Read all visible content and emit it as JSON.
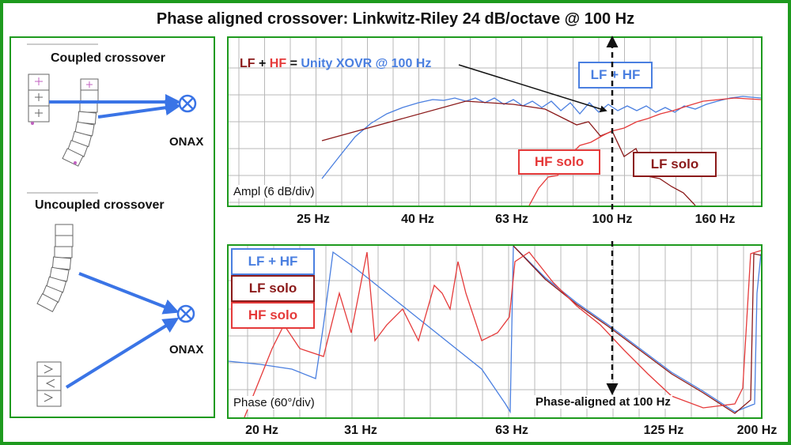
{
  "title": "Phase aligned crossover: Linkwitz-Riley 24 dB/octave @ 100 Hz",
  "left_panel": {
    "coupled_label": "Coupled crossover",
    "uncoupled_label": "Uncoupled crossover",
    "onax_label": "ONAX"
  },
  "amplitude_panel": {
    "legend_lf": "LF",
    "legend_plus1": "+",
    "legend_hf": "HF",
    "legend_eq": "=",
    "legend_unity": "Unity XOVR @ 100 Hz",
    "box_sum": "LF + HF",
    "box_hf": "HF solo",
    "box_lf": "LF solo",
    "axis_note": "Ampl (6 dB/div)",
    "ticks": [
      "25 Hz",
      "40 Hz",
      "63 Hz",
      "100 Hz",
      "160 Hz"
    ]
  },
  "phase_panel": {
    "box_sum": "LF + HF",
    "box_lf": "LF solo",
    "box_hf": "HF solo",
    "axis_note": "Phase (60°/div)",
    "phase_aligned": "Phase-aligned at 100 Hz",
    "ticks": [
      "20 Hz",
      "31 Hz",
      "63 Hz",
      "125 Hz",
      "200 Hz"
    ]
  },
  "colors": {
    "border_green": "#1e9a1e",
    "sum_blue": "#4a7fe0",
    "hf_red": "#e53a3a",
    "lf_darkred": "#8b1a1a",
    "arrow_blue": "#3a74e6"
  },
  "icons": [
    "speaker-array-icon",
    "listening-position-icon"
  ]
}
